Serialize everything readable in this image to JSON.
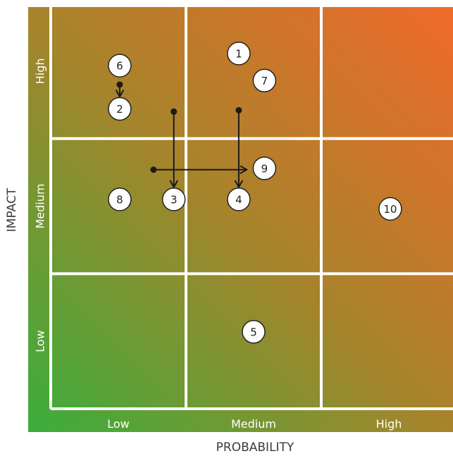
{
  "chart_data": {
    "type": "scatter",
    "title": "",
    "xlabel": "PROBABILITY",
    "ylabel": "IMPACT",
    "x_categories": [
      "Low",
      "Medium",
      "High"
    ],
    "y_categories": [
      "Low",
      "Medium",
      "High"
    ],
    "xlim": [
      0,
      3
    ],
    "ylim": [
      0,
      3
    ],
    "grid": true,
    "colors": {
      "gradient_low": "#3aae3c",
      "gradient_mid": "#a8832b",
      "gradient_high": "#f0692a",
      "grid_line": "#ffffff",
      "marker_fill": "#ffffff",
      "marker_stroke": "#222222",
      "arrow": "#1a1a1a"
    },
    "points": [
      {
        "label": "1",
        "x": 1.39,
        "y": 2.63
      },
      {
        "label": "2",
        "x": 0.51,
        "y": 2.22
      },
      {
        "label": "3",
        "x": 0.91,
        "y": 1.55
      },
      {
        "label": "4",
        "x": 1.39,
        "y": 1.55
      },
      {
        "label": "5",
        "x": 1.5,
        "y": 0.57
      },
      {
        "label": "6",
        "x": 0.51,
        "y": 2.54
      },
      {
        "label": "7",
        "x": 1.58,
        "y": 2.43
      },
      {
        "label": "8",
        "x": 0.51,
        "y": 1.55
      },
      {
        "label": "9",
        "x": 1.58,
        "y": 1.78
      },
      {
        "label": "10",
        "x": 2.51,
        "y": 1.48
      }
    ],
    "movements": [
      {
        "from": [
          0.51,
          2.4
        ],
        "to": [
          0.51,
          2.31
        ]
      },
      {
        "from": [
          0.91,
          2.2
        ],
        "to": [
          0.91,
          1.64
        ]
      },
      {
        "from": [
          1.39,
          2.21
        ],
        "to": [
          1.39,
          1.64
        ]
      },
      {
        "from": [
          0.76,
          1.77
        ],
        "to": [
          1.45,
          1.77
        ]
      }
    ]
  }
}
